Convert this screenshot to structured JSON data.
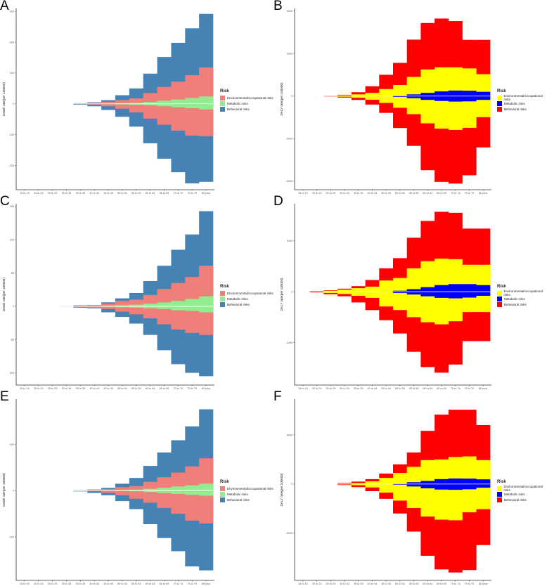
{
  "chart_data": [
    {
      "panel": "A",
      "type": "bar",
      "ylabel": "Death rate(per 100000)",
      "yticks": [
        -200,
        -100,
        0,
        100,
        200,
        300
      ],
      "ylim": [
        -265,
        305
      ],
      "categories": [
        "15 to 19",
        "20 to 24",
        "25 to 29",
        "30 to 34",
        "35 to 39",
        "40 to 44",
        "45 to 49",
        "50 to 54",
        "55 to 59",
        "60 to 64",
        "65 to 69",
        "70 to 74",
        "75 to 79",
        "80 plus"
      ],
      "legend_title": "Risk",
      "legend": [
        "Environmental/occupational risks",
        "Metabolic risks",
        "Behavioral risks"
      ],
      "colors": [
        "#F07F79",
        "#90EE90",
        "#4682B4"
      ],
      "series": [
        {
          "name": "Metabolic risks",
          "upper": [
            0,
            0,
            0,
            0,
            0.3,
            0.6,
            1,
            2,
            3,
            6,
            10,
            14,
            19,
            24
          ],
          "lower": [
            0,
            0,
            0,
            0,
            -0.3,
            -0.6,
            -1,
            -2,
            -3,
            -5,
            -8,
            -11,
            -14,
            -18
          ]
        },
        {
          "name": "Environmental/occupational risks",
          "upper": [
            0,
            0,
            0,
            0,
            1,
            3,
            7,
            12,
            18,
            35,
            55,
            72,
            93,
            118
          ],
          "lower": [
            0,
            0,
            0,
            0,
            -1,
            -3,
            -8,
            -16,
            -28,
            -48,
            -68,
            -87,
            -103,
            -105
          ]
        },
        {
          "name": "Behavioral risks",
          "upper": [
            0,
            0,
            0,
            0,
            2,
            5,
            12,
            28,
            50,
            98,
            152,
            198,
            245,
            292
          ],
          "lower": [
            0,
            0,
            0,
            0,
            -3,
            -8,
            -20,
            -42,
            -74,
            -128,
            -178,
            -222,
            -258,
            -253
          ]
        }
      ]
    },
    {
      "panel": "B",
      "type": "bar",
      "ylabel": "DALY rate(per 100000)",
      "yticks": [
        -4000,
        -2000,
        0,
        2000,
        4000
      ],
      "ylim": [
        -4200,
        4050
      ],
      "categories": [
        "15 to 19",
        "20 to 24",
        "25 to 29",
        "30 to 34",
        "35 to 39",
        "40 to 44",
        "45 to 49",
        "50 to 54",
        "55 to 59",
        "60 to 64",
        "65 to 69",
        "70 to 74",
        "75 to 79",
        "80 plus"
      ],
      "legend_title": "Risk",
      "legend": [
        "Environmental/occupational risks",
        "Metabolic risks",
        "Behavioral risks"
      ],
      "colors": [
        "#FFFF00",
        "#0000FF",
        "#FF0000"
      ],
      "series": [
        {
          "name": "Metabolic risks",
          "upper": [
            0,
            0,
            0,
            0,
            0,
            0,
            0,
            20,
            80,
            150,
            220,
            260,
            250,
            200
          ],
          "lower": [
            0,
            0,
            0,
            0,
            0,
            0,
            0,
            -40,
            -100,
            -180,
            -230,
            -260,
            -250,
            -180
          ]
        },
        {
          "name": "Environmental/occupational risks",
          "upper": [
            0,
            0,
            10,
            30,
            80,
            150,
            330,
            520,
            900,
            1250,
            1350,
            1350,
            1300,
            1030
          ],
          "lower": [
            0,
            0,
            -10,
            -30,
            -80,
            -170,
            -320,
            -550,
            -850,
            -1280,
            -1530,
            -1590,
            -1490,
            -990
          ]
        },
        {
          "name": "Behavioral risks",
          "upper": [
            0,
            0,
            20,
            60,
            180,
            460,
            1000,
            1560,
            2650,
            3430,
            3640,
            3520,
            2640,
            2640
          ],
          "lower": [
            0,
            0,
            -20,
            -70,
            -180,
            -400,
            -790,
            -1500,
            -2340,
            -3480,
            -4030,
            -4110,
            -3720,
            -2410
          ]
        }
      ]
    },
    {
      "panel": "C",
      "type": "bar",
      "ylabel": "Death rate(per 100000)",
      "yticks": [
        -100,
        -50,
        0,
        50,
        100,
        150
      ],
      "ylim": [
        -112,
        152
      ],
      "categories": [
        "15 to 19",
        "20 to 24",
        "25 to 29",
        "30 to 34",
        "35 to 39",
        "40 to 44",
        "45 to 49",
        "50 to 54",
        "55 to 59",
        "60 to 64",
        "65 to 69",
        "70 to 74",
        "75 to 79",
        "80 plus"
      ],
      "legend_title": "Risk",
      "legend": [
        "Environmental/occupational risks",
        "Metabolic risks",
        "Behavioral risks"
      ],
      "colors": [
        "#F07F79",
        "#90EE90",
        "#4682B4"
      ],
      "series": [
        {
          "name": "Metabolic risks",
          "upper": [
            0,
            0,
            0,
            0,
            0.2,
            0.4,
            0.8,
            1.5,
            2.5,
            4,
            6,
            8,
            11,
            15
          ],
          "lower": [
            0,
            0,
            0,
            0,
            -0.2,
            -0.4,
            -0.8,
            -1.5,
            -2,
            -3,
            -4,
            -6,
            -7,
            -9
          ]
        },
        {
          "name": "Environmental/occupational risks",
          "upper": [
            0,
            0,
            0,
            0.5,
            1,
            2,
            4,
            8,
            10,
            17,
            26,
            35,
            44,
            61
          ],
          "lower": [
            0,
            0,
            0,
            -0.5,
            -1,
            -2,
            -4,
            -8,
            -12,
            -18,
            -27,
            -35,
            -40,
            -43
          ]
        },
        {
          "name": "Behavioral risks",
          "upper": [
            0,
            0,
            0,
            0.5,
            1.5,
            2,
            6,
            12,
            20,
            38,
            61,
            85,
            108,
            143
          ],
          "lower": [
            0,
            0,
            0,
            -0.5,
            -2,
            -3,
            -9,
            -16,
            -26,
            -43,
            -66,
            -87,
            -100,
            -105
          ]
        }
      ]
    },
    {
      "panel": "D",
      "type": "bar",
      "ylabel": "DALY rate(per 100000)",
      "yticks": [
        -1000,
        0,
        1000
      ],
      "ylim": [
        -1750,
        1700
      ],
      "categories": [
        "15 to 19",
        "20 to 24",
        "25 to 29",
        "30 to 34",
        "35 to 39",
        "40 to 44",
        "45 to 49",
        "50 to 54",
        "55 to 59",
        "60 to 64",
        "65 to 69",
        "70 to 74",
        "75 to 79",
        "80 plus"
      ],
      "legend_title": "Risk",
      "legend": [
        "Environmental/occupational risks",
        "Metabolic risks",
        "Behavioral risks"
      ],
      "colors": [
        "#FFFF00",
        "#0000FF",
        "#FF0000"
      ],
      "series": [
        {
          "name": "Metabolic risks",
          "upper": [
            0,
            0,
            0,
            0,
            0,
            0,
            5,
            20,
            50,
            90,
            130,
            150,
            150,
            130
          ],
          "lower": [
            0,
            0,
            0,
            0,
            0,
            0,
            -5,
            -25,
            -55,
            -90,
            -120,
            -130,
            -115,
            -80
          ]
        },
        {
          "name": "Environmental/occupational risks",
          "upper": [
            0,
            5,
            20,
            40,
            70,
            100,
            220,
            270,
            460,
            600,
            650,
            640,
            530,
            530
          ],
          "lower": [
            0,
            -5,
            -25,
            -45,
            -80,
            -120,
            -290,
            -360,
            -500,
            -600,
            -640,
            -580,
            -400,
            -400
          ]
        },
        {
          "name": "Behavioral risks",
          "upper": [
            0,
            15,
            30,
            60,
            110,
            230,
            460,
            660,
            1060,
            1390,
            1570,
            1550,
            1240,
            1240
          ],
          "lower": [
            0,
            -15,
            -50,
            -90,
            -210,
            -360,
            -560,
            -820,
            -1180,
            -1480,
            -1590,
            -1430,
            -970,
            -970
          ]
        }
      ]
    },
    {
      "panel": "E",
      "type": "bar",
      "ylabel": "Death rate(per 100000)",
      "yticks": [
        -200,
        0,
        200
      ],
      "ylim": [
        -370,
        390
      ],
      "categories": [
        "15 to 19",
        "20 to 24",
        "25 to 29",
        "30 to 34",
        "35 to 39",
        "40 to 44",
        "45 to 49",
        "50 to 54",
        "55 to 59",
        "60 to 64",
        "65 to 69",
        "70 to 74",
        "75 to 79",
        "80 plus"
      ],
      "legend_title": "Risk",
      "legend": [
        "Environmental/occupational risks",
        "Metabolic risks",
        "Behavioral risks"
      ],
      "colors": [
        "#F07F79",
        "#90EE90",
        "#4682B4"
      ],
      "series": [
        {
          "name": "Metabolic risks",
          "upper": [
            0,
            0,
            0,
            0,
            0.3,
            0.6,
            1,
            2,
            4,
            8,
            13,
            18,
            23,
            30
          ],
          "lower": [
            0,
            0,
            0,
            0,
            -0.3,
            -0.6,
            -1,
            -2,
            -3,
            -6,
            -10,
            -14,
            -18,
            -22
          ]
        },
        {
          "name": "Environmental/occupational risks",
          "upper": [
            0,
            0,
            0,
            0,
            1,
            3,
            7,
            15,
            20,
            38,
            58,
            78,
            105,
            140
          ],
          "lower": [
            0,
            0,
            0,
            0,
            -1,
            -3,
            -10,
            -20,
            -35,
            -52,
            -75,
            -100,
            -130,
            -142
          ]
        },
        {
          "name": "Behavioral risks",
          "upper": [
            0,
            0,
            0,
            0,
            2,
            5,
            12,
            30,
            55,
            107,
            165,
            218,
            278,
            352
          ],
          "lower": [
            0,
            0,
            0,
            0,
            -3,
            -10,
            -20,
            -45,
            -80,
            -145,
            -205,
            -262,
            -328,
            -345
          ]
        }
      ]
    },
    {
      "panel": "F",
      "type": "bar",
      "ylabel": "DALY rate(per 100000)",
      "yticks": [
        -4000,
        0,
        4000
      ],
      "ylim": [
        -7500,
        6800
      ],
      "categories": [
        "15 to 19",
        "20 to 24",
        "25 to 29",
        "30 to 34",
        "35 to 39",
        "40 to 44",
        "45 to 49",
        "50 to 54",
        "55 to 59",
        "60 to 64",
        "65 to 69",
        "70 to 74",
        "75 to 79",
        "80 plus"
      ],
      "legend_title": "Risk",
      "legend": [
        "Environmental/occupational risks",
        "Metabolic risks",
        "Behavioral risks"
      ],
      "colors": [
        "#FFFF00",
        "#0000FF",
        "#FF0000"
      ],
      "series": [
        {
          "name": "Metabolic risks",
          "upper": [
            0,
            0,
            0,
            0,
            0,
            0,
            0,
            30,
            150,
            250,
            400,
            450,
            440,
            380
          ],
          "lower": [
            0,
            0,
            0,
            0,
            0,
            0,
            0,
            -60,
            -200,
            -350,
            -450,
            -470,
            -430,
            -300
          ]
        },
        {
          "name": "Environmental/occupational risks",
          "upper": [
            0,
            0,
            0,
            30,
            80,
            220,
            500,
            900,
            1400,
            1950,
            2000,
            2200,
            2250,
            1950
          ],
          "lower": [
            0,
            0,
            0,
            -30,
            -100,
            -280,
            -700,
            -1350,
            -1950,
            -2650,
            -2900,
            -2950,
            -2300,
            -2050
          ]
        },
        {
          "name": "Behavioral risks",
          "upper": [
            0,
            0,
            0,
            80,
            200,
            400,
            850,
            1600,
            2570,
            4330,
            5650,
            6050,
            6050,
            4800
          ],
          "lower": [
            0,
            0,
            0,
            -80,
            -250,
            -580,
            -1200,
            -2400,
            -3870,
            -5840,
            -6950,
            -7200,
            -7000,
            -4970
          ]
        }
      ]
    }
  ]
}
